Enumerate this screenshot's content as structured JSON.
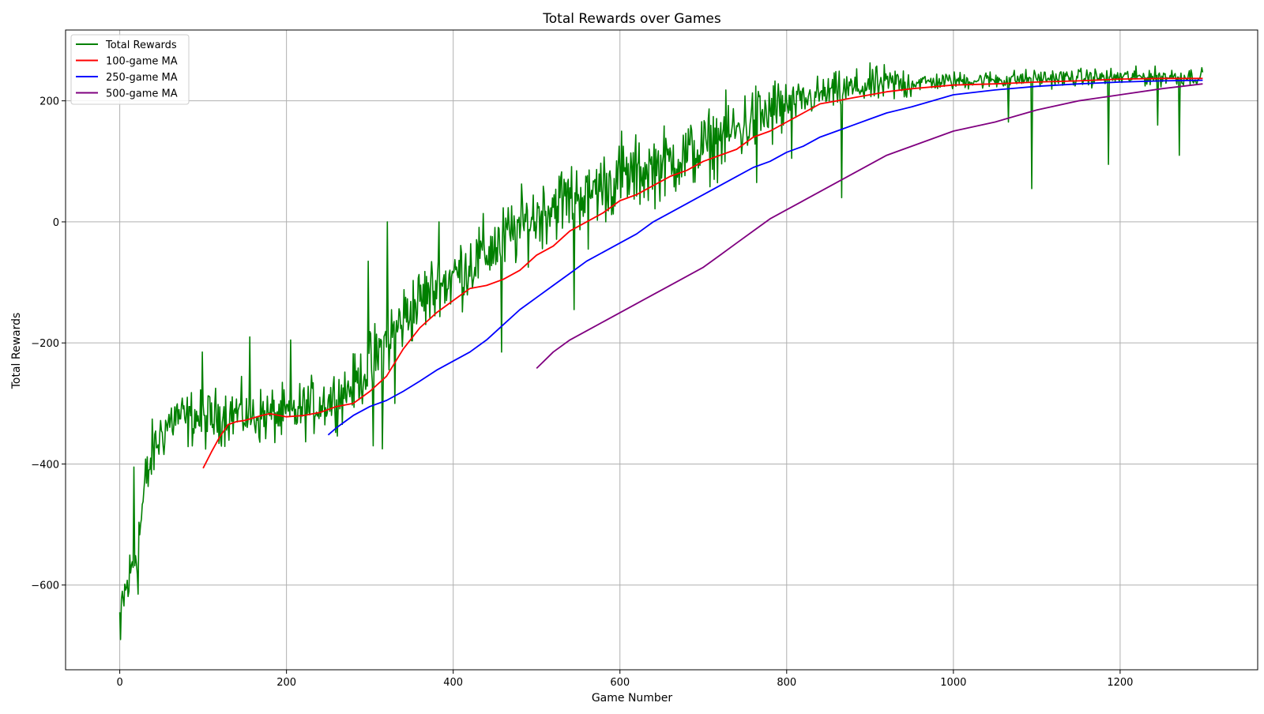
{
  "chart_data": {
    "type": "line",
    "title": "Total Rewards over Games",
    "xlabel": "Game Number",
    "ylabel": "Total Rewards",
    "xlim": [
      -65,
      1365
    ],
    "ylim": [
      -740,
      317
    ],
    "xticks": [
      0,
      200,
      400,
      600,
      800,
      1000,
      1200
    ],
    "yticks": [
      -600,
      -400,
      -200,
      0,
      200
    ],
    "grid": true,
    "legend_position": "top-left",
    "series": [
      {
        "name": "Total Rewards",
        "color": "#008000",
        "kind": "noisy",
        "x_start": 0,
        "x_end": 1299,
        "x_step": 1,
        "note": "per-game values follow the trend points below with fluctuations and spikes",
        "trend_x": [
          0,
          5,
          10,
          15,
          20,
          25,
          30,
          40,
          50,
          60,
          70,
          80,
          90,
          100,
          120,
          140,
          160,
          180,
          200,
          220,
          240,
          260,
          280,
          300,
          320,
          340,
          360,
          380,
          400,
          420,
          440,
          460,
          480,
          500,
          520,
          540,
          560,
          580,
          600,
          620,
          640,
          660,
          680,
          700,
          720,
          740,
          760,
          780,
          800,
          820,
          840,
          860,
          880,
          900,
          950,
          1000,
          1050,
          1100,
          1150,
          1200,
          1250,
          1299
        ],
        "trend_y": [
          -650,
          -620,
          -600,
          -570,
          -540,
          -500,
          -440,
          -380,
          -350,
          -330,
          -320,
          -330,
          -320,
          -330,
          -320,
          -315,
          -320,
          -320,
          -320,
          -310,
          -300,
          -290,
          -270,
          -240,
          -200,
          -160,
          -130,
          -110,
          -90,
          -70,
          -50,
          -30,
          -10,
          10,
          30,
          40,
          50,
          60,
          70,
          80,
          90,
          100,
          110,
          120,
          140,
          150,
          170,
          180,
          190,
          200,
          210,
          215,
          220,
          225,
          230,
          233,
          235,
          237,
          238,
          239,
          240,
          240
        ],
        "spikes_x": [
          1,
          17,
          22,
          99,
          156,
          205,
          298,
          304,
          315,
          321,
          330,
          383,
          458,
          545,
          562,
          602,
          764,
          806,
          866,
          1066,
          1094,
          1186,
          1245,
          1271
        ],
        "spikes_y": [
          -690,
          -405,
          -615,
          -215,
          -190,
          -195,
          -65,
          -370,
          -375,
          0,
          -300,
          0,
          -215,
          -145,
          -45,
          150,
          65,
          105,
          40,
          165,
          55,
          95,
          160,
          110
        ]
      },
      {
        "name": "100-game MA",
        "color": "#ff0000",
        "kind": "smooth",
        "x": [
          100,
          110,
          120,
          130,
          140,
          150,
          170,
          180,
          200,
          220,
          240,
          260,
          280,
          300,
          320,
          340,
          360,
          380,
          400,
          420,
          440,
          460,
          480,
          500,
          520,
          540,
          560,
          580,
          600,
          620,
          640,
          660,
          680,
          700,
          720,
          740,
          760,
          780,
          800,
          820,
          840,
          860,
          880,
          900,
          920,
          950,
          1000,
          1050,
          1100,
          1150,
          1200,
          1250,
          1299
        ],
        "y": [
          -407,
          -380,
          -355,
          -335,
          -330,
          -328,
          -320,
          -317,
          -322,
          -320,
          -315,
          -305,
          -300,
          -280,
          -255,
          -210,
          -175,
          -150,
          -130,
          -110,
          -105,
          -95,
          -80,
          -55,
          -40,
          -15,
          0,
          15,
          35,
          45,
          60,
          75,
          85,
          100,
          110,
          120,
          140,
          150,
          165,
          180,
          195,
          200,
          205,
          210,
          215,
          220,
          226,
          228,
          231,
          233,
          236,
          237,
          237
        ]
      },
      {
        "name": "250-game MA",
        "color": "#0000ff",
        "kind": "smooth",
        "x": [
          250,
          260,
          280,
          300,
          320,
          340,
          360,
          380,
          400,
          420,
          440,
          460,
          480,
          500,
          520,
          540,
          560,
          580,
          600,
          620,
          640,
          660,
          680,
          700,
          720,
          740,
          760,
          780,
          800,
          820,
          840,
          860,
          880,
          900,
          920,
          950,
          1000,
          1050,
          1100,
          1150,
          1200,
          1250,
          1299
        ],
        "y": [
          -352,
          -340,
          -320,
          -305,
          -295,
          -280,
          -263,
          -245,
          -230,
          -215,
          -195,
          -170,
          -145,
          -125,
          -105,
          -85,
          -65,
          -50,
          -35,
          -20,
          0,
          15,
          30,
          45,
          60,
          75,
          90,
          100,
          115,
          125,
          140,
          150,
          160,
          170,
          180,
          190,
          210,
          218,
          224,
          228,
          231,
          233,
          234
        ]
      },
      {
        "name": "500-game MA",
        "color": "#800080",
        "kind": "smooth",
        "x": [
          500,
          520,
          540,
          560,
          580,
          600,
          620,
          640,
          660,
          680,
          700,
          720,
          740,
          760,
          780,
          800,
          820,
          840,
          860,
          880,
          900,
          920,
          950,
          1000,
          1050,
          1100,
          1150,
          1200,
          1250,
          1299
        ],
        "y": [
          -242,
          -215,
          -195,
          -180,
          -165,
          -150,
          -135,
          -120,
          -105,
          -90,
          -75,
          -55,
          -35,
          -15,
          5,
          20,
          35,
          50,
          65,
          80,
          95,
          110,
          125,
          150,
          165,
          185,
          200,
          210,
          220,
          228
        ]
      }
    ]
  }
}
